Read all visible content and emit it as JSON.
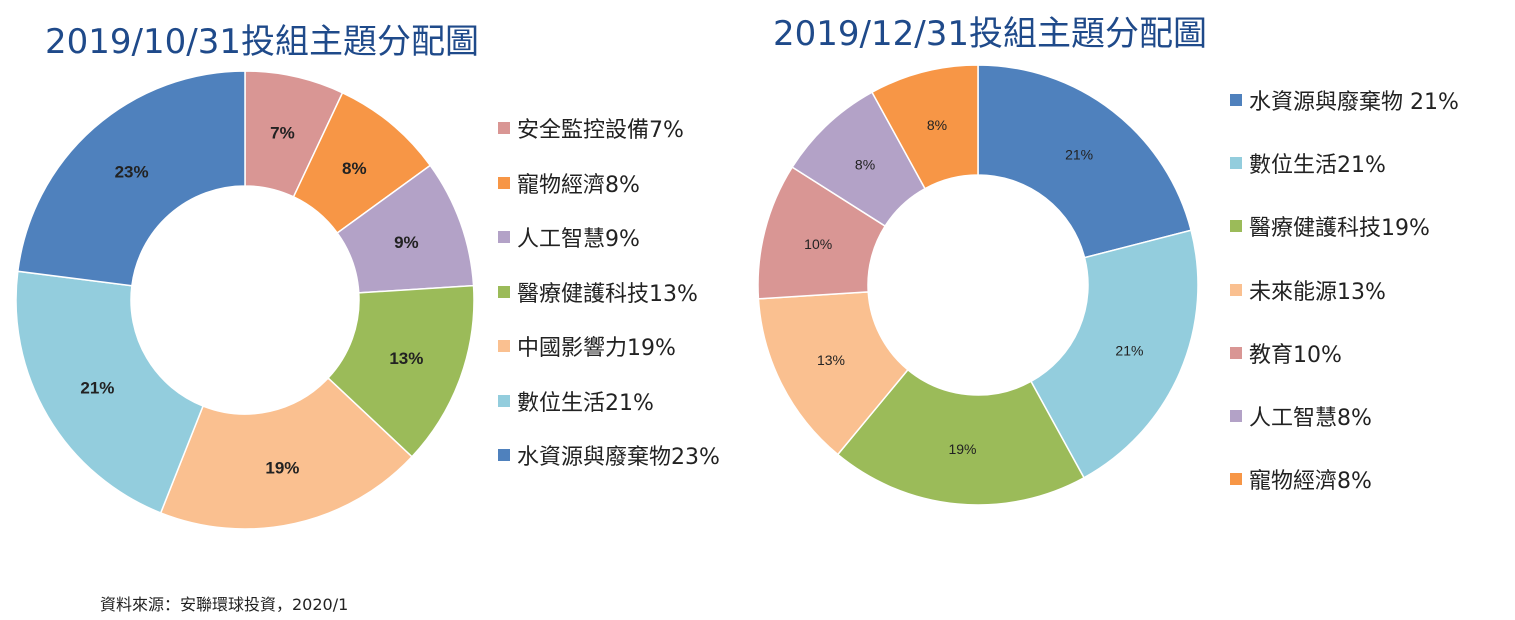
{
  "chart_data": [
    {
      "type": "pie",
      "donut": true,
      "title": "2019/10/31投組主題分配圖",
      "slices": [
        {
          "label": "安全監控設備",
          "value": 7,
          "data_label": "7%",
          "legend": "安全監控設備7%",
          "color": "#D99694"
        },
        {
          "label": "寵物經濟",
          "value": 8,
          "data_label": "8%",
          "legend": "寵物經濟8%",
          "color": "#F79646"
        },
        {
          "label": "人工智慧",
          "value": 9,
          "data_label": "9%",
          "legend": "人工智慧9%",
          "color": "#B3A2C7"
        },
        {
          "label": "醫療健護科技",
          "value": 13,
          "data_label": "13%",
          "legend": "醫療健護科技13%",
          "color": "#9BBB59"
        },
        {
          "label": "中國影響力",
          "value": 19,
          "data_label": "19%",
          "legend": "中國影響力19%",
          "color": "#FAC090"
        },
        {
          "label": "數位生活",
          "value": 21,
          "data_label": "21%",
          "legend": "數位生活21%",
          "color": "#93CDDD"
        },
        {
          "label": "水資源與廢棄物",
          "value": 23,
          "data_label": "23%",
          "legend": "水資源與廢棄物23%",
          "color": "#4F81BD"
        }
      ],
      "legend_order": [
        0,
        1,
        2,
        3,
        4,
        5,
        6
      ],
      "legend_position": "right"
    },
    {
      "type": "pie",
      "donut": true,
      "title": "2019/12/31投組主題分配圖",
      "slices": [
        {
          "label": "水資源與廢棄物",
          "value": 21,
          "data_label": "21%",
          "legend": "水資源與廢棄物 21%",
          "color": "#4F81BD"
        },
        {
          "label": "數位生活",
          "value": 21,
          "data_label": "21%",
          "legend": "數位生活21%",
          "color": "#93CDDD"
        },
        {
          "label": "醫療健護科技",
          "value": 19,
          "data_label": "19%",
          "legend": "醫療健護科技19%",
          "color": "#9BBB59"
        },
        {
          "label": "未來能源",
          "value": 13,
          "data_label": "13%",
          "legend": "未來能源13%",
          "color": "#FAC090"
        },
        {
          "label": "教育",
          "value": 10,
          "data_label": "10%",
          "legend": "教育10%",
          "color": "#D99694"
        },
        {
          "label": "人工智慧",
          "value": 8,
          "data_label": "8%",
          "legend": "人工智慧8%",
          "color": "#B3A2C7"
        },
        {
          "label": "寵物經濟",
          "value": 8,
          "data_label": "8%",
          "legend": "寵物經濟8%",
          "color": "#F79646"
        }
      ],
      "legend_position": "right"
    }
  ],
  "source": "資料來源：安聯環球投資，2020/1"
}
